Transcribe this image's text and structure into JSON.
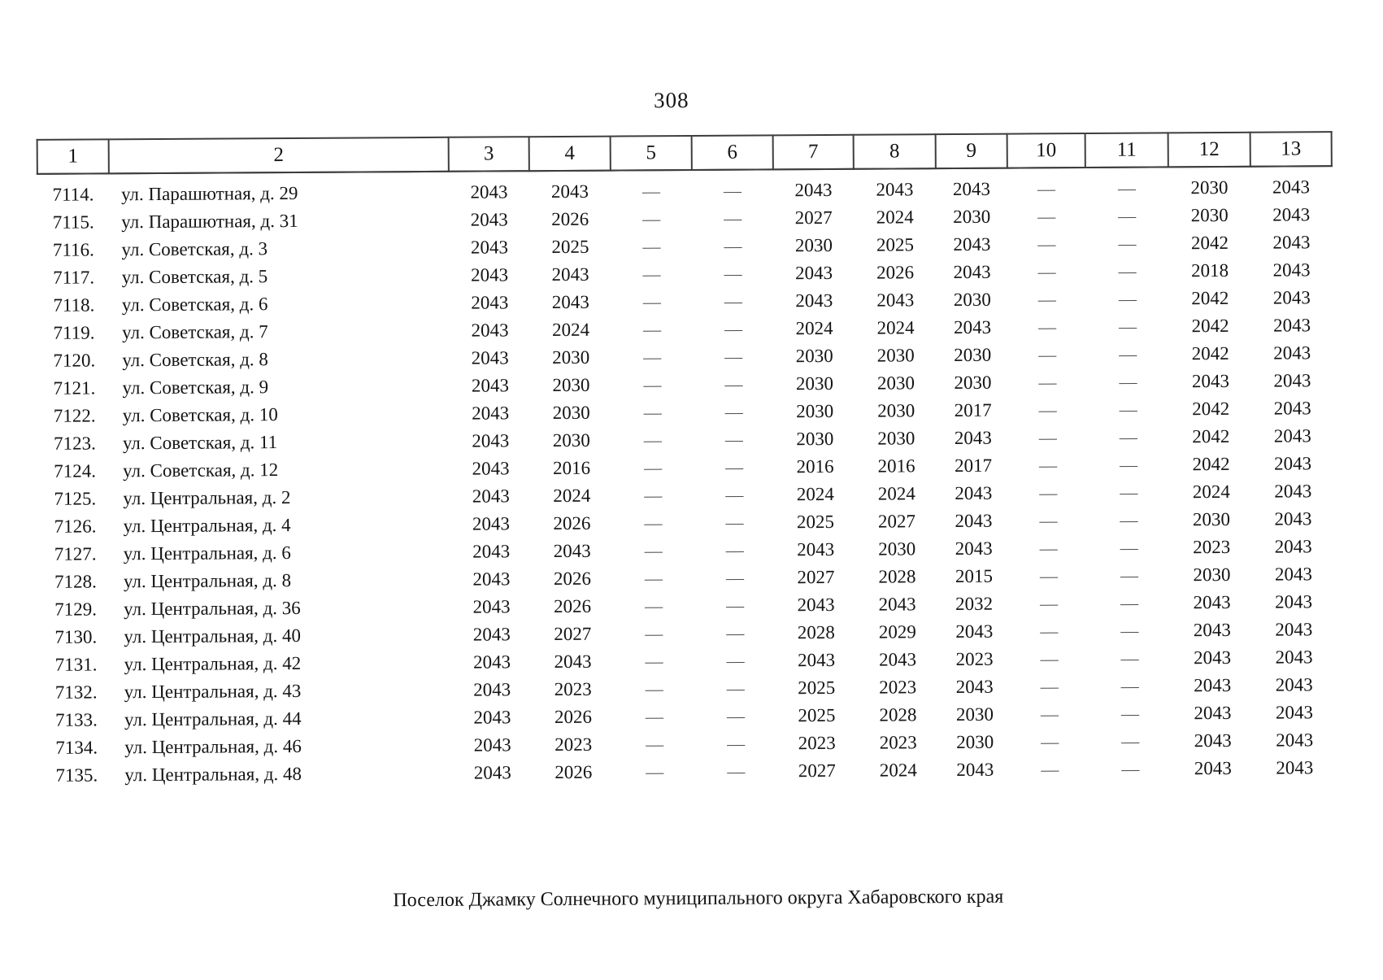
{
  "page": {
    "number": "308",
    "caption": "Поселок Джамку Солнечного муниципального округа Хабаровского края"
  },
  "table": {
    "columns": [
      "1",
      "2",
      "3",
      "4",
      "5",
      "6",
      "7",
      "8",
      "9",
      "10",
      "11",
      "12",
      "13"
    ],
    "rows": [
      {
        "num": "7114.",
        "address": "ул. Парашютная, д. 29",
        "values": [
          "2043",
          "2043",
          "—",
          "—",
          "2043",
          "2043",
          "2043",
          "—",
          "—",
          "2030",
          "2043"
        ]
      },
      {
        "num": "7115.",
        "address": "ул. Парашютная, д. 31",
        "values": [
          "2043",
          "2026",
          "—",
          "—",
          "2027",
          "2024",
          "2030",
          "—",
          "—",
          "2030",
          "2043"
        ]
      },
      {
        "num": "7116.",
        "address": "ул. Советская, д. 3",
        "values": [
          "2043",
          "2025",
          "—",
          "—",
          "2030",
          "2025",
          "2043",
          "—",
          "—",
          "2042",
          "2043"
        ]
      },
      {
        "num": "7117.",
        "address": "ул. Советская, д. 5",
        "values": [
          "2043",
          "2043",
          "—",
          "—",
          "2043",
          "2026",
          "2043",
          "—",
          "—",
          "2018",
          "2043"
        ]
      },
      {
        "num": "7118.",
        "address": "ул. Советская, д. 6",
        "values": [
          "2043",
          "2043",
          "—",
          "—",
          "2043",
          "2043",
          "2030",
          "—",
          "—",
          "2042",
          "2043"
        ]
      },
      {
        "num": "7119.",
        "address": "ул. Советская, д. 7",
        "values": [
          "2043",
          "2024",
          "—",
          "—",
          "2024",
          "2024",
          "2043",
          "—",
          "—",
          "2042",
          "2043"
        ]
      },
      {
        "num": "7120.",
        "address": "ул. Советская, д. 8",
        "values": [
          "2043",
          "2030",
          "—",
          "—",
          "2030",
          "2030",
          "2030",
          "—",
          "—",
          "2042",
          "2043"
        ]
      },
      {
        "num": "7121.",
        "address": "ул. Советская, д. 9",
        "values": [
          "2043",
          "2030",
          "—",
          "—",
          "2030",
          "2030",
          "2030",
          "—",
          "—",
          "2043",
          "2043"
        ]
      },
      {
        "num": "7122.",
        "address": "ул. Советская, д. 10",
        "values": [
          "2043",
          "2030",
          "—",
          "—",
          "2030",
          "2030",
          "2017",
          "—",
          "—",
          "2042",
          "2043"
        ]
      },
      {
        "num": "7123.",
        "address": "ул. Советская, д. 11",
        "values": [
          "2043",
          "2030",
          "—",
          "—",
          "2030",
          "2030",
          "2043",
          "—",
          "—",
          "2042",
          "2043"
        ]
      },
      {
        "num": "7124.",
        "address": "ул. Советская, д. 12",
        "values": [
          "2043",
          "2016",
          "—",
          "—",
          "2016",
          "2016",
          "2017",
          "—",
          "—",
          "2042",
          "2043"
        ]
      },
      {
        "num": "7125.",
        "address": "ул. Центральная, д. 2",
        "values": [
          "2043",
          "2024",
          "—",
          "—",
          "2024",
          "2024",
          "2043",
          "—",
          "—",
          "2024",
          "2043"
        ]
      },
      {
        "num": "7126.",
        "address": "ул. Центральная, д. 4",
        "values": [
          "2043",
          "2026",
          "—",
          "—",
          "2025",
          "2027",
          "2043",
          "—",
          "—",
          "2030",
          "2043"
        ]
      },
      {
        "num": "7127.",
        "address": "ул. Центральная, д. 6",
        "values": [
          "2043",
          "2043",
          "—",
          "—",
          "2043",
          "2030",
          "2043",
          "—",
          "—",
          "2023",
          "2043"
        ]
      },
      {
        "num": "7128.",
        "address": "ул. Центральная, д. 8",
        "values": [
          "2043",
          "2026",
          "—",
          "—",
          "2027",
          "2028",
          "2015",
          "—",
          "—",
          "2030",
          "2043"
        ]
      },
      {
        "num": "7129.",
        "address": "ул. Центральная, д. 36",
        "values": [
          "2043",
          "2026",
          "—",
          "—",
          "2043",
          "2043",
          "2032",
          "—",
          "—",
          "2043",
          "2043"
        ]
      },
      {
        "num": "7130.",
        "address": "ул. Центральная, д. 40",
        "values": [
          "2043",
          "2027",
          "—",
          "—",
          "2028",
          "2029",
          "2043",
          "—",
          "—",
          "2043",
          "2043"
        ]
      },
      {
        "num": "7131.",
        "address": "ул. Центральная, д. 42",
        "values": [
          "2043",
          "2043",
          "—",
          "—",
          "2043",
          "2043",
          "2023",
          "—",
          "—",
          "2043",
          "2043"
        ]
      },
      {
        "num": "7132.",
        "address": "ул. Центральная, д. 43",
        "values": [
          "2043",
          "2023",
          "—",
          "—",
          "2025",
          "2023",
          "2043",
          "—",
          "—",
          "2043",
          "2043"
        ]
      },
      {
        "num": "7133.",
        "address": "ул. Центральная, д. 44",
        "values": [
          "2043",
          "2026",
          "—",
          "—",
          "2025",
          "2028",
          "2030",
          "—",
          "—",
          "2043",
          "2043"
        ]
      },
      {
        "num": "7134.",
        "address": "ул. Центральная, д. 46",
        "values": [
          "2043",
          "2023",
          "—",
          "—",
          "2023",
          "2023",
          "2030",
          "—",
          "—",
          "2043",
          "2043"
        ]
      },
      {
        "num": "7135.",
        "address": "ул. Центральная, д. 48",
        "values": [
          "2043",
          "2026",
          "—",
          "—",
          "2027",
          "2024",
          "2043",
          "—",
          "—",
          "2043",
          "2043"
        ]
      }
    ]
  }
}
